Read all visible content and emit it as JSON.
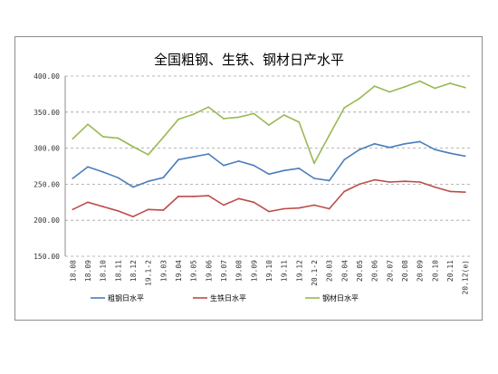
{
  "chart_data": {
    "type": "line",
    "title": "全国粗钢、生铁、钢材日产水平",
    "xlabel": "",
    "ylabel": "",
    "ylim": [
      150,
      400
    ],
    "yticks": [
      "150.00",
      "200.00",
      "250.00",
      "300.00",
      "350.00",
      "400.00"
    ],
    "grid": "horizontal",
    "legend": "bottom",
    "categories": [
      "18.08",
      "18.09",
      "18.10",
      "18.11",
      "18.12",
      "19.1-2",
      "19.03",
      "19.04",
      "19.05",
      "19.06",
      "19.07",
      "19.08",
      "19.09",
      "19.10",
      "19.11",
      "19.12",
      "20.1-2",
      "20.03",
      "20.04",
      "20.05",
      "20.06",
      "20.07",
      "20.08",
      "20.09",
      "20.10",
      "20.11",
      "20.12(e)"
    ],
    "series": [
      {
        "name": "粗钢日水平",
        "color": "#4a7ebb",
        "values": [
          258,
          274,
          267,
          259,
          246,
          254,
          259,
          284,
          288,
          292,
          276,
          282,
          276,
          264,
          269,
          272,
          258,
          255,
          284,
          298,
          306,
          301,
          306,
          309,
          298,
          293,
          289
        ]
      },
      {
        "name": "生铁日水平",
        "color": "#be4b48",
        "values": [
          215,
          225,
          219,
          213,
          205,
          215,
          214,
          233,
          233,
          234,
          221,
          230,
          225,
          212,
          216,
          217,
          221,
          216,
          240,
          250,
          256,
          253,
          254,
          253,
          246,
          240,
          239
        ]
      },
      {
        "name": "钢材日水平",
        "color": "#98b954",
        "values": [
          313,
          333,
          316,
          314,
          302,
          291,
          315,
          340,
          347,
          357,
          341,
          343,
          348,
          332,
          346,
          336,
          279,
          318,
          356,
          369,
          386,
          378,
          385,
          393,
          383,
          390,
          384
        ]
      }
    ]
  }
}
